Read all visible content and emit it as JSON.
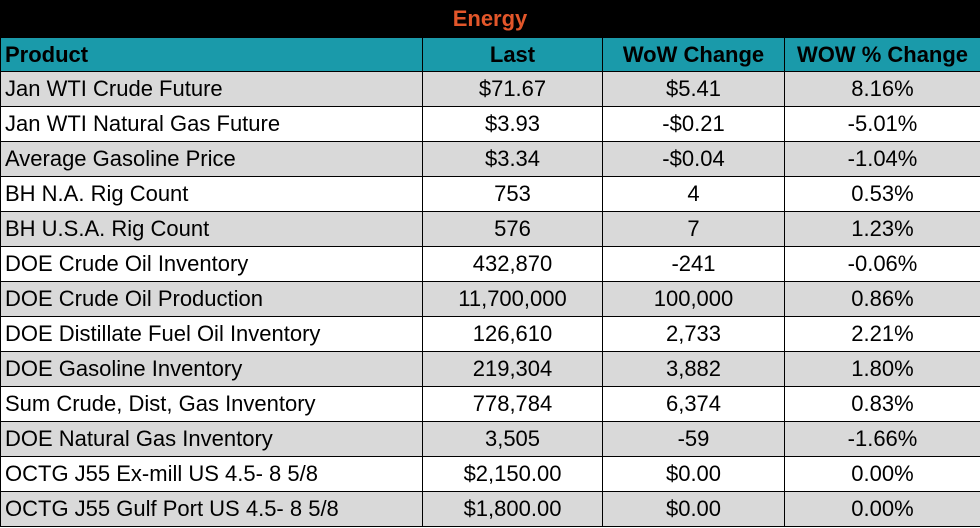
{
  "title": "Energy",
  "colors": {
    "title_bg": "#000000",
    "title_text": "#e2562a",
    "header_bg": "#1a9aaa",
    "stripe": "#d9d9d9"
  },
  "headers": [
    "Product",
    "Last",
    "WoW Change",
    "WOW % Change"
  ],
  "rows": [
    [
      "Jan WTI Crude Future",
      "$71.67",
      "$5.41",
      "8.16%"
    ],
    [
      "Jan WTI Natural Gas Future",
      "$3.93",
      "-$0.21",
      "-5.01%"
    ],
    [
      "Average Gasoline Price",
      "$3.34",
      "-$0.04",
      "-1.04%"
    ],
    [
      "BH N.A. Rig Count",
      "753",
      "4",
      "0.53%"
    ],
    [
      "BH U.S.A. Rig Count",
      "576",
      "7",
      "1.23%"
    ],
    [
      "DOE Crude Oil Inventory",
      "432,870",
      "-241",
      "-0.06%"
    ],
    [
      "DOE Crude Oil Production",
      "11,700,000",
      "100,000",
      "0.86%"
    ],
    [
      "DOE Distillate Fuel Oil Inventory",
      "126,610",
      "2,733",
      "2.21%"
    ],
    [
      "DOE Gasoline Inventory",
      "219,304",
      "3,882",
      "1.80%"
    ],
    [
      "Sum Crude, Dist, Gas Inventory",
      "778,784",
      "6,374",
      "0.83%"
    ],
    [
      "DOE Natural Gas Inventory",
      "3,505",
      "-59",
      "-1.66%"
    ],
    [
      "OCTG J55 Ex-mill US 4.5- 8 5/8",
      "$2,150.00",
      "$0.00",
      "0.00%"
    ],
    [
      "OCTG J55 Gulf Port US 4.5- 8 5/8",
      "$1,800.00",
      "$0.00",
      "0.00%"
    ]
  ]
}
